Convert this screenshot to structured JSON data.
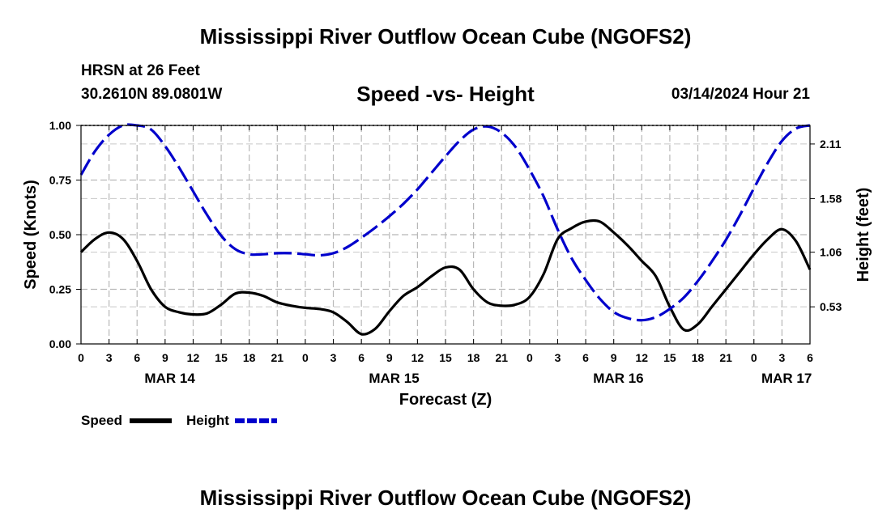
{
  "header": {
    "title": "Mississippi River Outflow Ocean Cube (NGOFS2)",
    "station": "HRSN at 26 Feet",
    "coords": "30.2610N  89.0801W",
    "subtitle": "Speed -vs- Height",
    "datetime": "03/14/2024 Hour 21"
  },
  "footer": {
    "title": "Mississippi River Outflow Ocean Cube (NGOFS2)"
  },
  "legend": {
    "speed_label": "Speed",
    "height_label": "Height",
    "speed_color": "#000000",
    "height_color": "#0000cc"
  },
  "chart_data": {
    "type": "line",
    "title": "Speed -vs- Height",
    "xlabel": "Forecast (Z)",
    "ylabel": "Speed (Knots)",
    "ylabel_right": "Height (feet)",
    "xlim": [
      0,
      78
    ],
    "ylim": [
      0,
      1.0
    ],
    "ylim_right": [
      0.17,
      2.29
    ],
    "grid": true,
    "legend_position": "bottom-left",
    "x_tick_labels": [
      "0",
      "3",
      "6",
      "9",
      "12",
      "15",
      "18",
      "21",
      "0",
      "3",
      "6",
      "9",
      "12",
      "15",
      "18",
      "21",
      "0",
      "3",
      "6",
      "9",
      "12",
      "15",
      "18",
      "21",
      "0",
      "3",
      "6"
    ],
    "x_tick_hours": [
      0,
      3,
      6,
      9,
      12,
      15,
      18,
      21,
      24,
      27,
      30,
      33,
      36,
      39,
      42,
      45,
      48,
      51,
      54,
      57,
      60,
      63,
      66,
      69,
      72,
      75,
      78
    ],
    "date_labels": [
      {
        "label": "MAR 14",
        "hour": 9.5
      },
      {
        "label": "MAR 15",
        "hour": 33.5
      },
      {
        "label": "MAR 16",
        "hour": 57.5
      },
      {
        "label": "MAR 17",
        "hour": 75.5
      }
    ],
    "y_ticks": [
      {
        "value": 0.0,
        "label": "0.00"
      },
      {
        "value": 0.25,
        "label": "0.25"
      },
      {
        "value": 0.5,
        "label": "0.50"
      },
      {
        "value": 0.75,
        "label": "0.75"
      },
      {
        "value": 1.0,
        "label": "1.00"
      }
    ],
    "y_ticks_right": [
      {
        "value": 0.53,
        "label": "0.53"
      },
      {
        "value": 1.06,
        "label": "1.06"
      },
      {
        "value": 1.58,
        "label": "1.58"
      },
      {
        "value": 2.11,
        "label": "2.11"
      }
    ],
    "series": [
      {
        "name": "Speed",
        "axis": "left",
        "color": "#000000",
        "style": "solid",
        "points": [
          [
            0,
            0.42
          ],
          [
            1.5,
            0.48
          ],
          [
            3,
            0.51
          ],
          [
            4.5,
            0.48
          ],
          [
            6,
            0.38
          ],
          [
            7.5,
            0.25
          ],
          [
            9,
            0.17
          ],
          [
            10.5,
            0.145
          ],
          [
            12,
            0.135
          ],
          [
            13.5,
            0.14
          ],
          [
            15,
            0.18
          ],
          [
            16.5,
            0.23
          ],
          [
            18,
            0.235
          ],
          [
            19.5,
            0.22
          ],
          [
            21,
            0.19
          ],
          [
            22.5,
            0.175
          ],
          [
            24,
            0.165
          ],
          [
            25.5,
            0.16
          ],
          [
            27,
            0.145
          ],
          [
            28.5,
            0.1
          ],
          [
            30,
            0.045
          ],
          [
            31.5,
            0.07
          ],
          [
            33,
            0.15
          ],
          [
            34.5,
            0.22
          ],
          [
            36,
            0.26
          ],
          [
            37.5,
            0.31
          ],
          [
            39,
            0.35
          ],
          [
            40.5,
            0.34
          ],
          [
            42,
            0.25
          ],
          [
            43.5,
            0.19
          ],
          [
            45,
            0.175
          ],
          [
            46.5,
            0.18
          ],
          [
            48,
            0.215
          ],
          [
            49.5,
            0.32
          ],
          [
            51,
            0.48
          ],
          [
            52.5,
            0.53
          ],
          [
            54,
            0.56
          ],
          [
            55.5,
            0.56
          ],
          [
            57,
            0.51
          ],
          [
            58.5,
            0.45
          ],
          [
            60,
            0.38
          ],
          [
            61.5,
            0.31
          ],
          [
            63,
            0.17
          ],
          [
            64.5,
            0.065
          ],
          [
            66,
            0.09
          ],
          [
            67.5,
            0.17
          ],
          [
            69,
            0.25
          ],
          [
            70.5,
            0.33
          ],
          [
            72,
            0.41
          ],
          [
            73.5,
            0.48
          ],
          [
            75,
            0.525
          ],
          [
            76.5,
            0.47
          ],
          [
            78,
            0.34
          ]
        ]
      },
      {
        "name": "Height",
        "axis": "right",
        "color": "#0000cc",
        "style": "dashed",
        "points": [
          [
            0,
            1.81
          ],
          [
            1.5,
            2.04
          ],
          [
            3,
            2.2
          ],
          [
            4.5,
            2.29
          ],
          [
            6,
            2.31
          ],
          [
            7.5,
            2.25
          ],
          [
            9,
            2.09
          ],
          [
            10.5,
            1.88
          ],
          [
            12,
            1.65
          ],
          [
            13.5,
            1.42
          ],
          [
            15,
            1.22
          ],
          [
            16.5,
            1.09
          ],
          [
            18,
            1.04
          ],
          [
            19.5,
            1.04
          ],
          [
            21,
            1.05
          ],
          [
            22.5,
            1.05
          ],
          [
            24,
            1.04
          ],
          [
            25.5,
            1.03
          ],
          [
            27,
            1.05
          ],
          [
            28.5,
            1.11
          ],
          [
            30,
            1.2
          ],
          [
            31.5,
            1.3
          ],
          [
            33,
            1.41
          ],
          [
            34.5,
            1.53
          ],
          [
            36,
            1.67
          ],
          [
            37.5,
            1.83
          ],
          [
            39,
            1.99
          ],
          [
            40.5,
            2.14
          ],
          [
            42,
            2.25
          ],
          [
            43.5,
            2.28
          ],
          [
            45,
            2.22
          ],
          [
            46.5,
            2.08
          ],
          [
            48,
            1.86
          ],
          [
            49.5,
            1.6
          ],
          [
            51,
            1.28
          ],
          [
            52.5,
            1.0
          ],
          [
            54,
            0.79
          ],
          [
            55.5,
            0.61
          ],
          [
            57,
            0.48
          ],
          [
            58.5,
            0.42
          ],
          [
            60,
            0.4
          ],
          [
            61.5,
            0.43
          ],
          [
            63,
            0.51
          ],
          [
            64.5,
            0.62
          ],
          [
            66,
            0.78
          ],
          [
            67.5,
            0.97
          ],
          [
            69,
            1.18
          ],
          [
            70.5,
            1.42
          ],
          [
            72,
            1.68
          ],
          [
            73.5,
            1.93
          ],
          [
            75,
            2.14
          ],
          [
            76.5,
            2.26
          ],
          [
            78,
            2.34
          ]
        ]
      }
    ]
  }
}
